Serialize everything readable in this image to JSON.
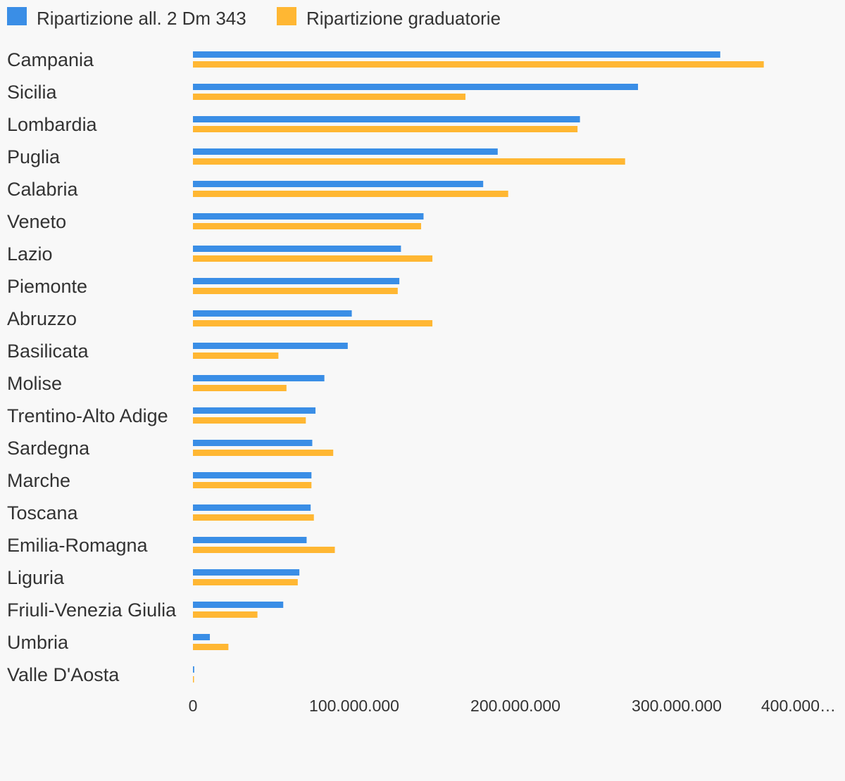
{
  "chart_data": {
    "type": "bar",
    "orientation": "horizontal",
    "categories": [
      "Campania",
      "Sicilia",
      "Lombardia",
      "Puglia",
      "Calabria",
      "Veneto",
      "Lazio",
      "Piemonte",
      "Abruzzo",
      "Basilicata",
      "Molise",
      "Trentino-Alto Adige",
      "Sardegna",
      "Marche",
      "Toscana",
      "Emilia-Romagna",
      "Liguria",
      "Friuli-Venezia Giulia",
      "Umbria",
      "Valle D'Aosta"
    ],
    "series": [
      {
        "name": "Ripartizione all. 2 Dm 343",
        "color": "#3a8ee6",
        "values": [
          327000000,
          276000000,
          240000000,
          189000000,
          180000000,
          143000000,
          129000000,
          128000000,
          98500000,
          96000000,
          81500000,
          76000000,
          74000000,
          73500000,
          73000000,
          70500000,
          66000000,
          56000000,
          10500000,
          800000
        ]
      },
      {
        "name": "Ripartizione graduatorie",
        "color": "#ffb733",
        "values": [
          354000000,
          169000000,
          238500000,
          268000000,
          195500000,
          141500000,
          148500000,
          127000000,
          148500000,
          53000000,
          58000000,
          70000000,
          87000000,
          73500000,
          75000000,
          88000000,
          65000000,
          40000000,
          22000000,
          500000
        ]
      }
    ],
    "x_ticks": [
      "0",
      "100.000.000",
      "200.000.000",
      "300.000.000",
      "400.000…"
    ],
    "xlim": [
      0,
      400000000
    ],
    "grid": false,
    "legend": "top-left"
  }
}
